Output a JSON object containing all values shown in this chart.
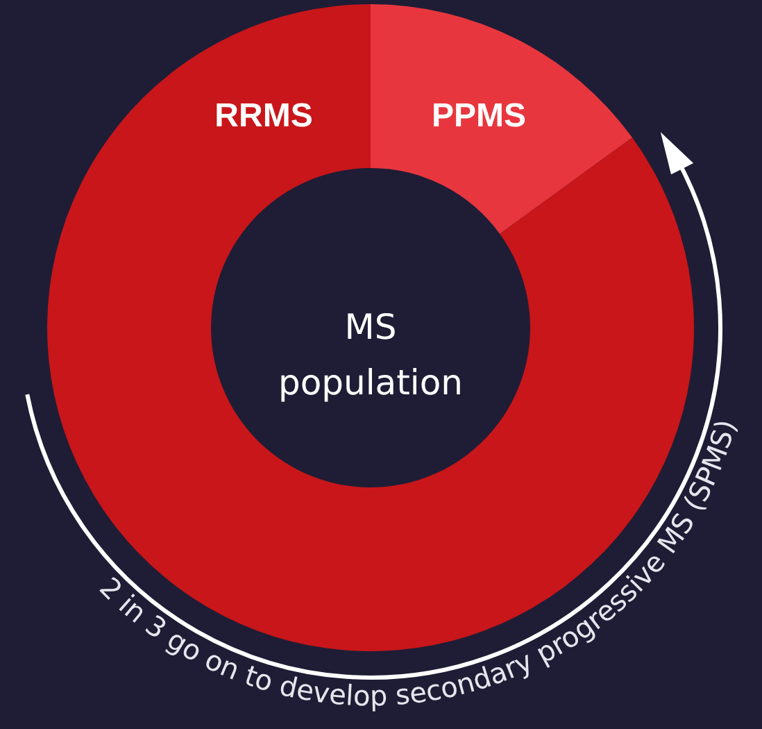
{
  "chart_data": {
    "type": "donut",
    "categories": [
      "RRMS",
      "PPMS"
    ],
    "values": [
      85,
      15
    ],
    "colors": [
      "#c8161a",
      "#e8363e"
    ],
    "annotations": [
      "MS population",
      "2 in 3 go on to develop secondary progressive MS (SPMS)"
    ]
  }
}
